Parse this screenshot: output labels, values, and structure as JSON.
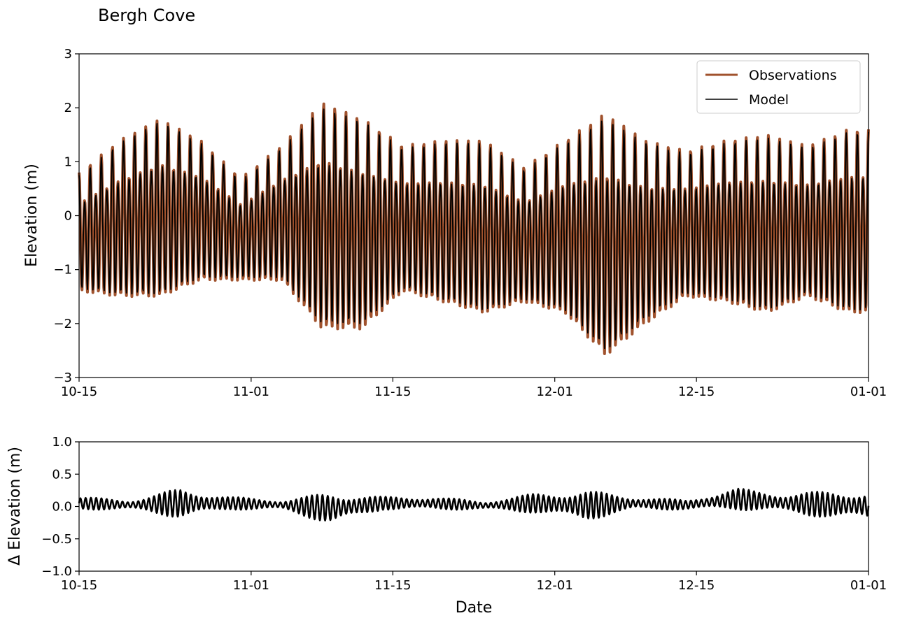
{
  "chart_data": [
    {
      "type": "line",
      "title": "Bergh Cove",
      "xlabel": "",
      "ylabel": "Elevation (m)",
      "xlim": [
        "10-15",
        "01-01"
      ],
      "ylim": [
        -3,
        3
      ],
      "xticks": [
        "10-15",
        "11-01",
        "11-15",
        "12-01",
        "12-15",
        "01-01"
      ],
      "yticks": [
        -3,
        -2,
        -1,
        0,
        1,
        2,
        3
      ],
      "ytick_labels": [
        "−3",
        "−2",
        "−1",
        "0",
        "1",
        "2",
        "3"
      ],
      "grid": false,
      "legend_position": "top-right",
      "series": [
        {
          "name": "Observations",
          "color": "#a0522d",
          "x": [
            "10-15",
            "10-19",
            "10-23",
            "10-27",
            "10-31",
            "11-04",
            "11-08",
            "11-12",
            "11-16",
            "11-20",
            "11-24",
            "11-28",
            "12-02",
            "12-06",
            "12-10",
            "12-14",
            "12-18",
            "12-22",
            "12-26",
            "12-30"
          ],
          "high": [
            0.8,
            1.4,
            1.8,
            1.4,
            0.7,
            1.3,
            2.1,
            1.8,
            1.3,
            1.4,
            1.4,
            0.9,
            1.4,
            1.9,
            1.4,
            1.2,
            1.4,
            1.5,
            1.3,
            1.6
          ],
          "low": [
            -1.4,
            -1.5,
            -1.5,
            -1.2,
            -1.2,
            -1.2,
            -2.1,
            -2.1,
            -1.4,
            -1.6,
            -1.8,
            -1.6,
            -1.8,
            -2.6,
            -2.0,
            -1.5,
            -1.6,
            -1.8,
            -1.5,
            -1.8
          ]
        },
        {
          "name": "Model",
          "color": "#000000",
          "x": [
            "10-15",
            "10-19",
            "10-23",
            "10-27",
            "10-31",
            "11-04",
            "11-08",
            "11-12",
            "11-16",
            "11-20",
            "11-24",
            "11-28",
            "12-02",
            "12-06",
            "12-10",
            "12-14",
            "12-18",
            "12-22",
            "12-26",
            "12-30"
          ],
          "high": [
            0.75,
            1.35,
            1.75,
            1.35,
            0.65,
            1.25,
            2.0,
            1.75,
            1.25,
            1.35,
            1.35,
            0.85,
            1.35,
            1.8,
            1.35,
            1.15,
            1.35,
            1.45,
            1.25,
            1.55
          ],
          "low": [
            -1.35,
            -1.45,
            -1.45,
            -1.15,
            -1.15,
            -1.15,
            -2.0,
            -2.0,
            -1.35,
            -1.55,
            -1.75,
            -1.55,
            -1.75,
            -2.5,
            -1.9,
            -1.45,
            -1.55,
            -1.75,
            -1.45,
            -1.75
          ]
        }
      ]
    },
    {
      "type": "line",
      "title": "",
      "xlabel": "Date",
      "ylabel": "Δ Elevation (m)",
      "xlim": [
        "10-15",
        "01-01"
      ],
      "ylim": [
        -1.0,
        1.0
      ],
      "xticks": [
        "10-15",
        "11-01",
        "11-15",
        "12-01",
        "12-15",
        "01-01"
      ],
      "yticks": [
        -1.0,
        -0.5,
        0.0,
        0.5,
        1.0
      ],
      "ytick_labels": [
        "−1.0",
        "−0.5",
        "0.0",
        "0.5",
        "1.0"
      ],
      "grid": false,
      "series": [
        {
          "color": "#000000",
          "x": [
            "10-15",
            "10-20",
            "10-25",
            "10-30",
            "11-04",
            "11-09",
            "11-14",
            "11-19",
            "11-24",
            "11-29",
            "12-04",
            "12-09",
            "12-14",
            "12-19",
            "12-24",
            "12-29",
            "01-01"
          ],
          "upper": [
            0.15,
            0.1,
            0.28,
            0.15,
            0.1,
            0.22,
            0.15,
            0.15,
            0.08,
            0.2,
            0.25,
            0.15,
            0.1,
            0.28,
            0.2,
            0.25,
            0.22
          ],
          "lower": [
            -0.05,
            -0.05,
            -0.18,
            -0.05,
            -0.05,
            -0.28,
            -0.05,
            -0.05,
            -0.05,
            -0.1,
            -0.22,
            -0.05,
            -0.05,
            -0.05,
            -0.1,
            -0.2,
            -0.2
          ]
        }
      ]
    }
  ]
}
